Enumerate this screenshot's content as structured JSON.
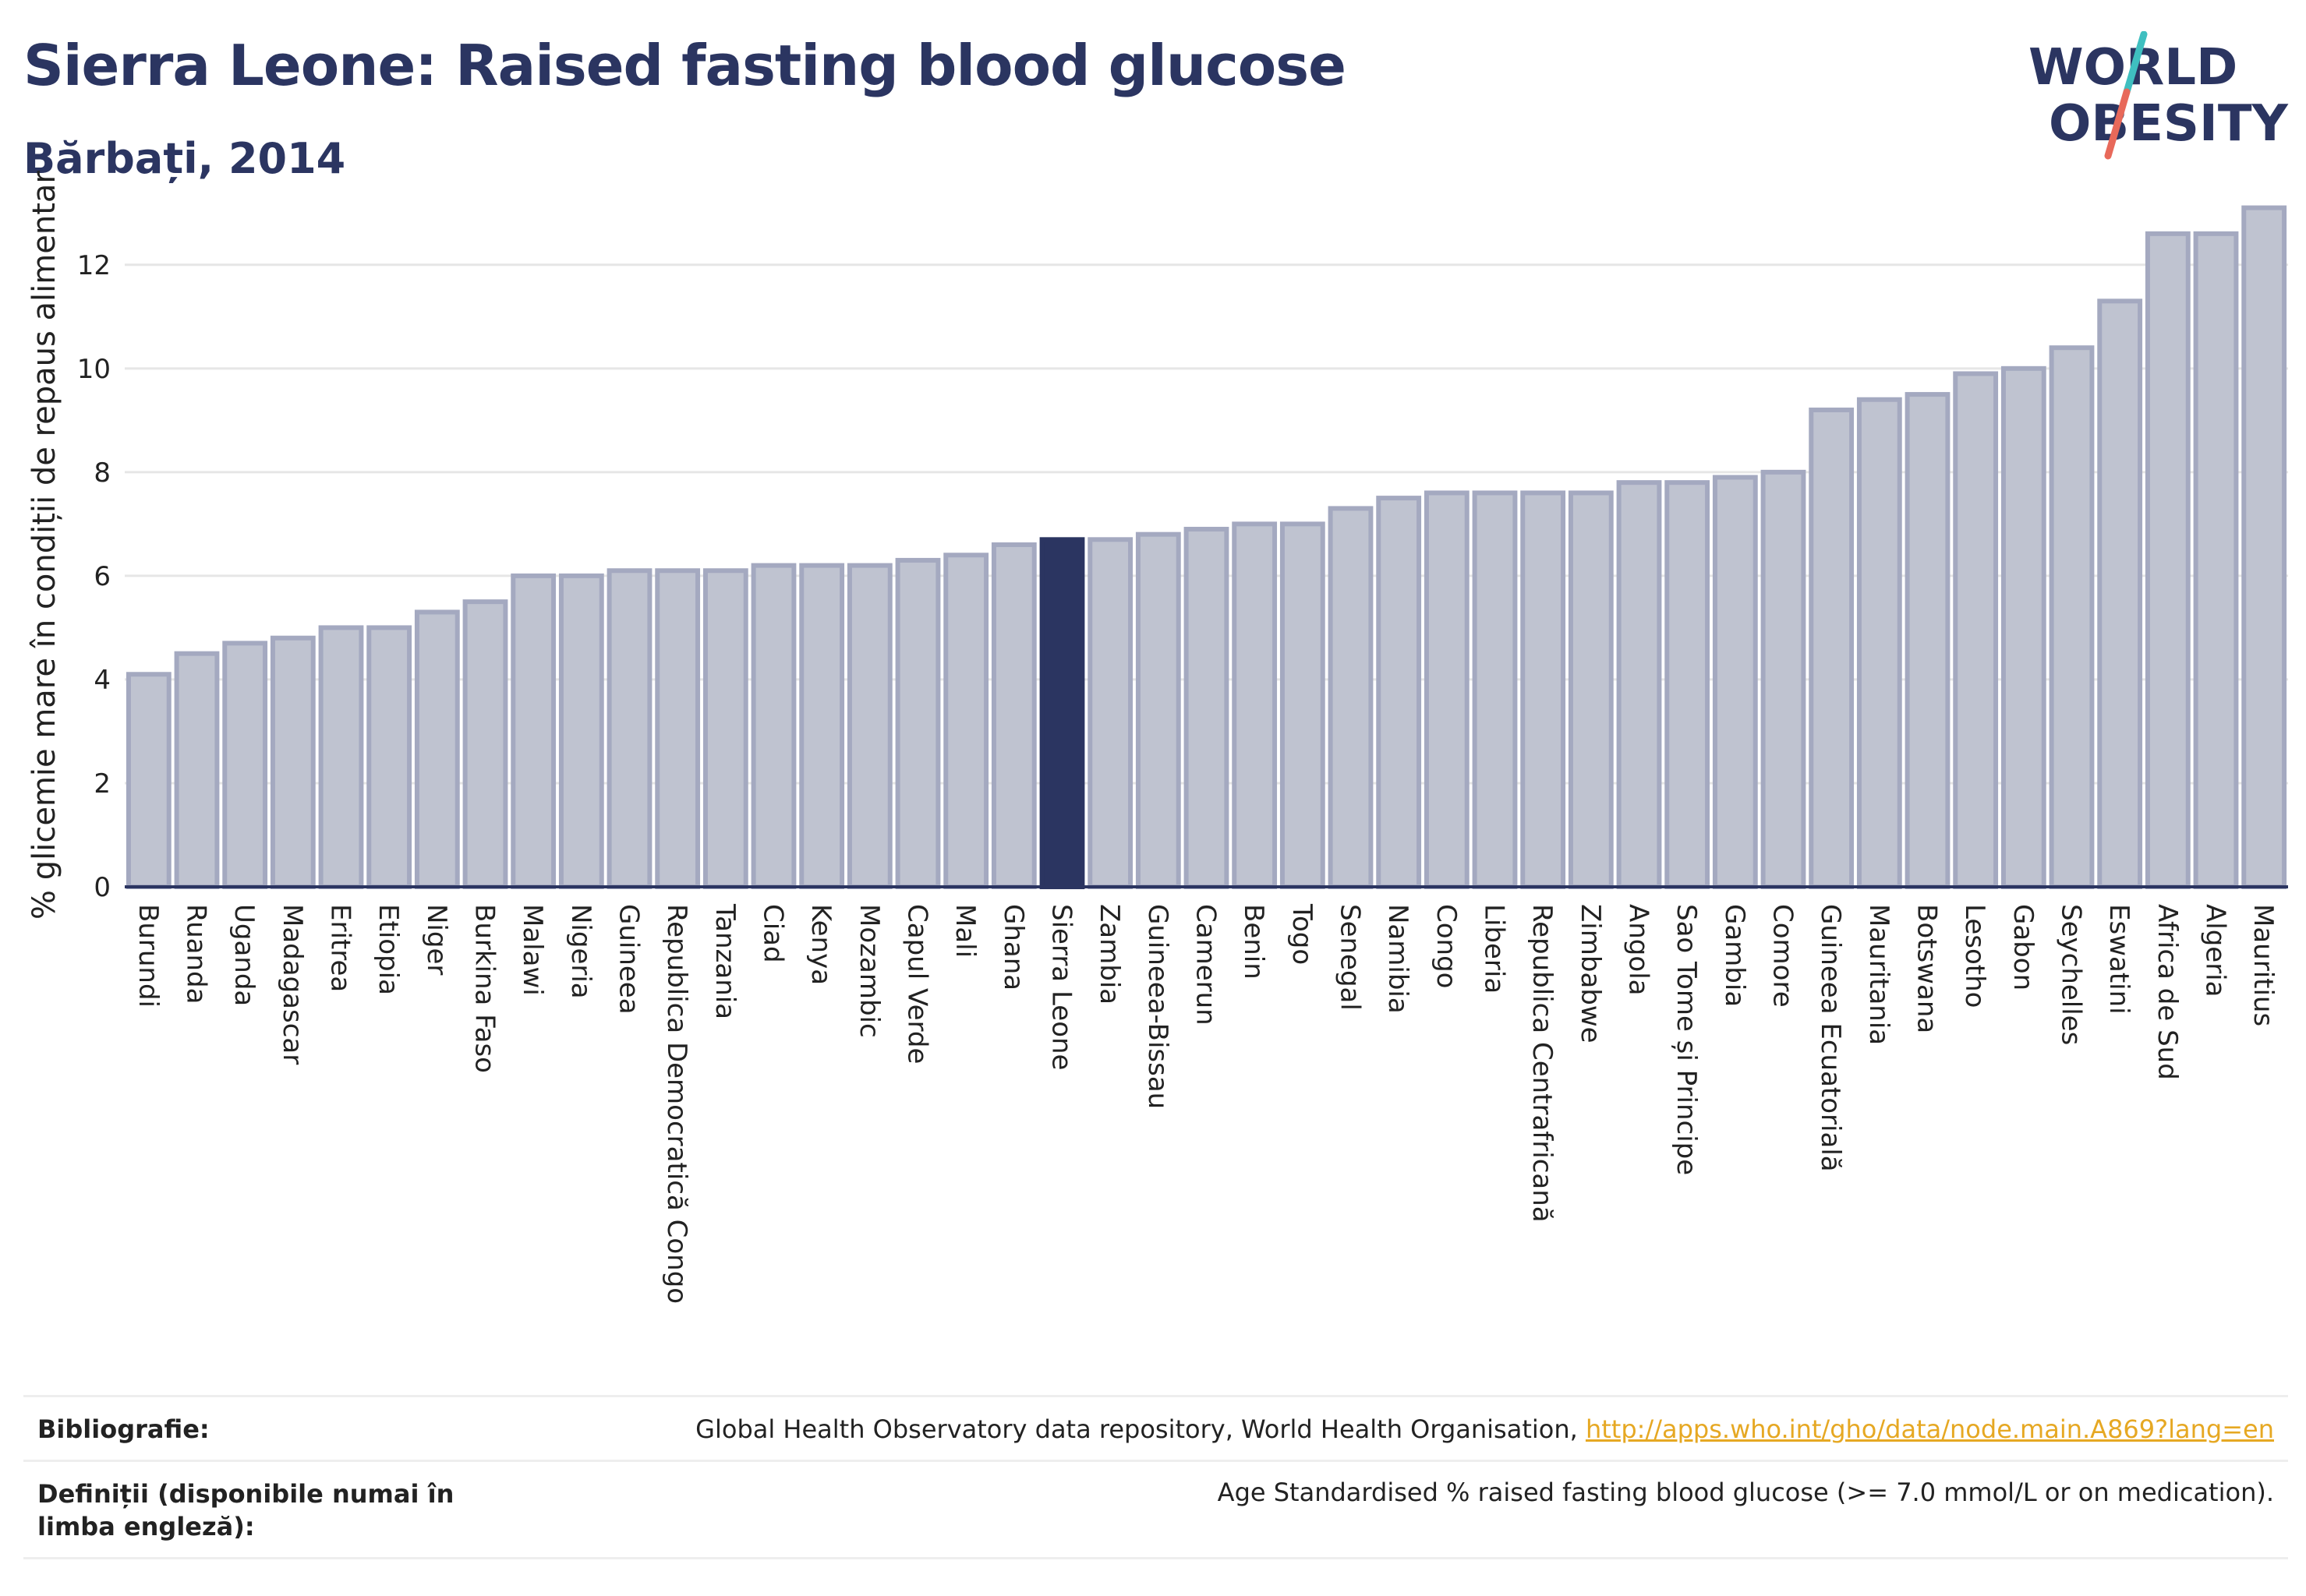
{
  "header": {
    "title": "Sierra Leone: Raised fasting blood glucose",
    "subtitle": "Bărbați, 2014"
  },
  "logo": {
    "line1": "WORLD",
    "line2": "OBESITY",
    "colors": {
      "text": "#2b3561",
      "slash_top": "#3fbfc0",
      "slash_bottom": "#e8695a"
    }
  },
  "chart_data": {
    "type": "bar",
    "title": "Sierra Leone: Raised fasting blood glucose",
    "subtitle": "Bărbați, 2014",
    "xlabel": "",
    "ylabel": "% glicemie mare în condiții de repaus alimentar",
    "ylim": [
      0,
      13.5
    ],
    "yticks": [
      0,
      2,
      4,
      6,
      8,
      10,
      12
    ],
    "grid": true,
    "highlight": "Sierra Leone",
    "colors": {
      "bar": "#bfc3d0",
      "bar_edge": "#a4a9c0",
      "highlight": "#2b3561",
      "grid": "#e6e6e6",
      "axis": "#2b3561"
    },
    "categories": [
      "Burundi",
      "Ruanda",
      "Uganda",
      "Madagascar",
      "Eritrea",
      "Etiopia",
      "Niger",
      "Burkina Faso",
      "Malawi",
      "Nigeria",
      "Guineea",
      "Republica Democratică Congo",
      "Tanzania",
      "Ciad",
      "Kenya",
      "Mozambic",
      "Capul Verde",
      "Mali",
      "Ghana",
      "Sierra Leone",
      "Zambia",
      "Guineea-Bissau",
      "Camerun",
      "Benin",
      "Togo",
      "Senegal",
      "Namibia",
      "Congo",
      "Liberia",
      "Republica Centrafricană",
      "Zimbabwe",
      "Angola",
      "Sao Tome și Principe",
      "Gambia",
      "Comore",
      "Guineea Ecuatorială",
      "Mauritania",
      "Botswana",
      "Lesotho",
      "Gabon",
      "Seychelles",
      "Eswatini",
      "Africa de Sud",
      "Algeria",
      "Mauritius"
    ],
    "values": [
      4.1,
      4.5,
      4.7,
      4.8,
      5.0,
      5.0,
      5.3,
      5.5,
      6.0,
      6.0,
      6.1,
      6.1,
      6.1,
      6.2,
      6.2,
      6.2,
      6.3,
      6.4,
      6.6,
      6.7,
      6.7,
      6.8,
      6.9,
      7.0,
      7.0,
      7.3,
      7.5,
      7.6,
      7.6,
      7.6,
      7.6,
      7.8,
      7.8,
      7.9,
      8.0,
      9.2,
      9.4,
      9.5,
      9.9,
      10.0,
      10.4,
      11.3,
      12.6,
      12.6,
      13.1
    ]
  },
  "footer": {
    "bibliography_label": "Bibliografie:",
    "bibliography_text": "Global Health Observatory data repository, World Health Organisation, ",
    "bibliography_link": "http://apps.who.int/gho/data/node.main.A869?lang=en",
    "definitions_label": "Definiții (disponibile numai în limba engleză):",
    "definitions_text": "Age Standardised % raised fasting blood glucose (>= 7.0 mmol/L or on medication)."
  }
}
